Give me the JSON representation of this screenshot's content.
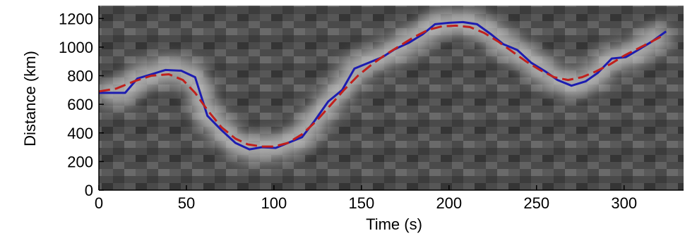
{
  "chart_data": {
    "type": "line",
    "x_label": "Time (s)",
    "y_label": "Distance (km)",
    "xlim": [
      0,
      334
    ],
    "ylim": [
      0,
      1290
    ],
    "xticks": [
      0,
      50,
      100,
      150,
      200,
      250,
      300
    ],
    "yticks": [
      0,
      200,
      400,
      600,
      800,
      1000,
      1200
    ],
    "series": [
      {
        "color": "#1c1cb0",
        "style": "solid",
        "x": [
          0,
          15,
          22,
          30,
          38,
          47,
          55,
          62,
          70,
          78,
          86,
          93,
          101,
          108,
          116,
          123,
          131,
          139,
          146,
          154,
          162,
          169,
          177,
          185,
          192,
          200,
          208,
          216,
          224,
          231,
          239,
          247,
          255,
          262,
          270,
          278,
          285,
          293,
          301,
          308,
          316,
          324
        ],
        "values": [
          680,
          680,
          780,
          810,
          840,
          835,
          790,
          520,
          420,
          330,
          285,
          300,
          295,
          330,
          370,
          480,
          620,
          700,
          850,
          890,
          930,
          985,
          1030,
          1090,
          1160,
          1170,
          1175,
          1160,
          1090,
          1020,
          980,
          890,
          830,
          770,
          730,
          760,
          820,
          920,
          930,
          980,
          1040,
          1110
        ]
      },
      {
        "color": "#c0201c",
        "style": "dashed",
        "x": [
          0,
          10,
          20,
          30,
          40,
          48,
          55,
          62,
          70,
          78,
          85,
          93,
          100,
          108,
          116,
          124,
          132,
          140,
          148,
          156,
          164,
          172,
          180,
          188,
          196,
          204,
          212,
          220,
          228,
          236,
          244,
          252,
          260,
          268,
          276,
          284,
          292,
          300,
          308,
          316,
          322
        ],
        "values": [
          690,
          710,
          760,
          800,
          810,
          770,
          680,
          560,
          440,
          360,
          320,
          305,
          305,
          330,
          390,
          480,
          590,
          700,
          800,
          880,
          950,
          1010,
          1070,
          1120,
          1145,
          1150,
          1140,
          1100,
          1040,
          970,
          900,
          840,
          790,
          770,
          790,
          830,
          880,
          940,
          990,
          1040,
          1080
        ]
      }
    ]
  }
}
